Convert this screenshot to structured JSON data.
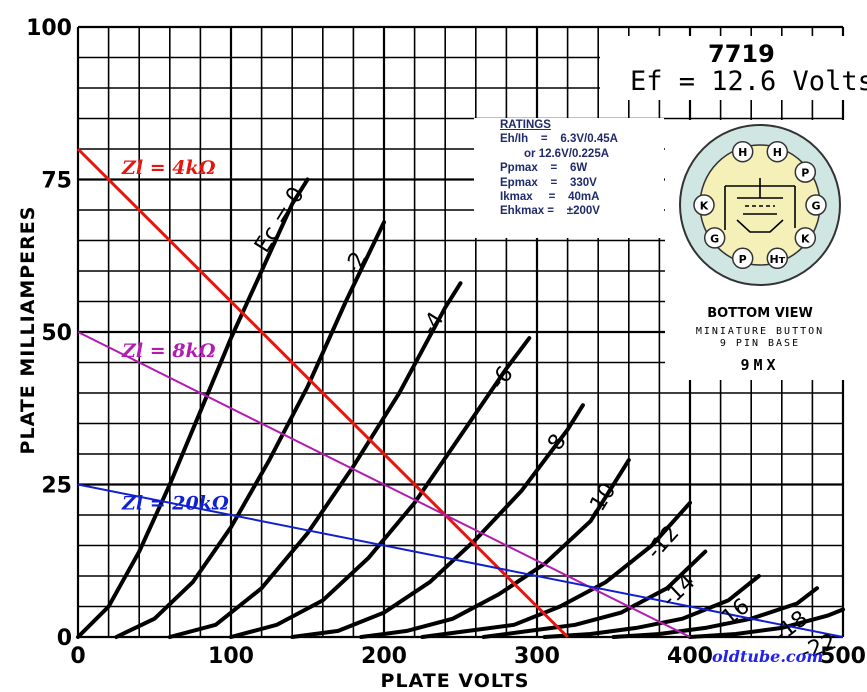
{
  "chart_data": {
    "type": "line",
    "xlabel": "PLATE VOLTS",
    "ylabel": "PLATE MILLIAMPERES",
    "xlim": [
      0,
      500
    ],
    "ylim": [
      0,
      100
    ],
    "x_ticks": [
      "0",
      "100",
      "200",
      "300",
      "400",
      "500"
    ],
    "y_ticks": [
      "0",
      "25",
      "50",
      "75",
      "100"
    ],
    "grid": true,
    "series": [
      {
        "name": "Ec = 0",
        "x": [
          0,
          20,
          40,
          60,
          80,
          100,
          120,
          140,
          150
        ],
        "y": [
          0,
          5,
          14,
          25,
          37,
          49,
          60,
          71,
          75
        ]
      },
      {
        "name": "-2",
        "x": [
          25,
          50,
          75,
          100,
          125,
          150,
          175,
          200
        ],
        "y": [
          0,
          3,
          9,
          18,
          29,
          41,
          55,
          68
        ]
      },
      {
        "name": "-4",
        "x": [
          60,
          90,
          120,
          150,
          180,
          210,
          240,
          250
        ],
        "y": [
          0,
          2,
          8,
          17,
          28,
          40,
          54,
          58
        ]
      },
      {
        "name": "-6",
        "x": [
          100,
          130,
          160,
          190,
          220,
          250,
          280,
          295
        ],
        "y": [
          0,
          2,
          6,
          13,
          22,
          33,
          44,
          49
        ]
      },
      {
        "name": "-8",
        "x": [
          140,
          170,
          200,
          230,
          260,
          290,
          320,
          330
        ],
        "y": [
          0,
          1,
          4,
          9,
          16,
          24,
          34,
          38
        ]
      },
      {
        "name": "-10",
        "x": [
          185,
          215,
          245,
          275,
          305,
          335,
          360
        ],
        "y": [
          0,
          1,
          3,
          7,
          12,
          19,
          29
        ]
      },
      {
        "name": "-12",
        "x": [
          225,
          255,
          285,
          315,
          345,
          375,
          400
        ],
        "y": [
          0,
          1,
          2,
          5,
          9,
          15,
          22
        ]
      },
      {
        "name": "-14",
        "x": [
          265,
          295,
          325,
          355,
          385,
          410
        ],
        "y": [
          0,
          1,
          2,
          4,
          8,
          14
        ]
      },
      {
        "name": "-16",
        "x": [
          305,
          335,
          365,
          395,
          425,
          445
        ],
        "y": [
          0,
          0.5,
          1.5,
          3,
          6,
          10
        ]
      },
      {
        "name": "-18",
        "x": [
          350,
          380,
          410,
          440,
          470,
          483
        ],
        "y": [
          0,
          0.5,
          1.5,
          3,
          5.5,
          8
        ]
      },
      {
        "name": "-22",
        "x": [
          400,
          430,
          460,
          490,
          500
        ],
        "y": [
          0,
          0.5,
          1.5,
          3.5,
          4.5
        ]
      }
    ],
    "load_lines": [
      {
        "name": "Zl = 4kΩ",
        "color": "#e8150e",
        "x": [
          0,
          320
        ],
        "y": [
          80,
          0
        ]
      },
      {
        "name": "Zl = 8kΩ",
        "color": "#b21cb2",
        "x": [
          0,
          400
        ],
        "y": [
          50,
          0
        ]
      },
      {
        "name": "Zl = 20kΩ",
        "color": "#1020d0",
        "x": [
          0,
          500
        ],
        "y": [
          25,
          0
        ]
      }
    ]
  },
  "tube": {
    "number": "7719",
    "ef": "Ef = 12.6 Volts"
  },
  "ratings": {
    "heading": "RATINGS",
    "rows": [
      "Eh/Ih    =    6.3V/0.45A",
      "or 12.6V/0.225A",
      "Ppmax    =    6W",
      "Epmax    =    330V",
      "Ikmax     =    40mA",
      "Ehkmax =    ±200V"
    ]
  },
  "base": {
    "view": "BOTTOM VIEW",
    "type_line1": "MINIATURE BUTTON",
    "type_line2": "9 PIN BASE",
    "code": "9MX",
    "pins": [
      "H",
      "H",
      "P",
      "G",
      "K",
      "Hт",
      "P",
      "G",
      "K"
    ]
  },
  "watermark": "oldtube.com"
}
